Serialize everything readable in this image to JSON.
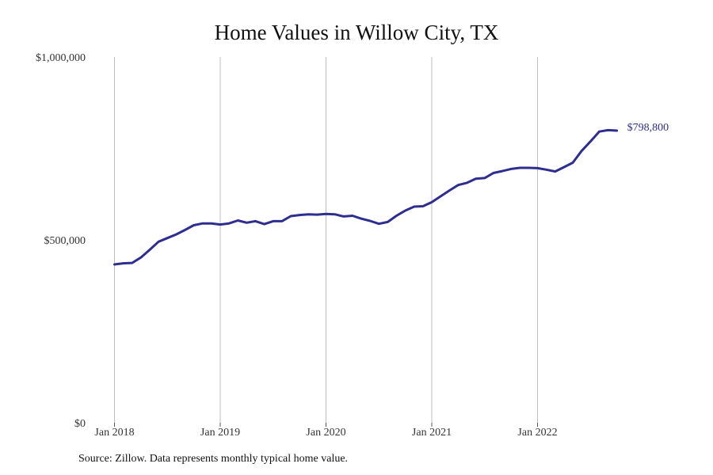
{
  "chart_data": {
    "type": "line",
    "title": "Home Values in Willow City, TX",
    "xlabel": "",
    "ylabel": "",
    "ylim": [
      0,
      1000000
    ],
    "y_ticks": [
      0,
      500000,
      1000000
    ],
    "y_tick_labels": [
      "$0",
      "$500,000",
      "$1,000,000"
    ],
    "x_ticks": [
      "2018-01",
      "2019-01",
      "2020-01",
      "2021-01",
      "2022-01"
    ],
    "x_tick_labels": [
      "Jan 2018",
      "Jan 2019",
      "Jan 2020",
      "Jan 2021",
      "Jan 2022"
    ],
    "grid": "vertical",
    "line_color": "#2e2e8f",
    "grid_color": "#bdbdbd",
    "end_label": "$798,800",
    "series": [
      {
        "x": [
          "2018-01",
          "2018-02",
          "2018-03",
          "2018-04",
          "2018-05",
          "2018-06",
          "2018-07",
          "2018-08",
          "2018-09",
          "2018-10",
          "2018-11",
          "2018-12",
          "2019-01",
          "2019-02",
          "2019-03",
          "2019-04",
          "2019-05",
          "2019-06",
          "2019-07",
          "2019-08",
          "2019-09",
          "2019-10",
          "2019-11",
          "2019-12",
          "2020-01",
          "2020-02",
          "2020-03",
          "2020-04",
          "2020-05",
          "2020-06",
          "2020-07",
          "2020-08",
          "2020-09",
          "2020-10",
          "2020-11",
          "2020-12",
          "2021-01",
          "2021-02",
          "2021-03",
          "2021-04",
          "2021-05",
          "2021-06",
          "2021-07",
          "2021-08",
          "2021-09",
          "2021-10",
          "2021-11",
          "2021-12",
          "2022-01",
          "2022-02",
          "2022-03",
          "2022-04",
          "2022-05",
          "2022-06",
          "2022-07",
          "2022-08",
          "2022-09",
          "2022-10"
        ],
        "values": [
          433000,
          436000,
          437000,
          452000,
          473000,
          495000,
          505000,
          515000,
          527000,
          540000,
          545000,
          545000,
          542000,
          545000,
          553000,
          547000,
          551000,
          543000,
          551000,
          551000,
          565000,
          568000,
          570000,
          569000,
          571000,
          570000,
          564000,
          566000,
          558000,
          552000,
          544000,
          549000,
          566000,
          580000,
          591000,
          592000,
          603000,
          619000,
          635000,
          650000,
          656000,
          667000,
          669000,
          683000,
          688000,
          694000,
          697000,
          697000,
          696000,
          692000,
          687000,
          699000,
          711000,
          743000,
          769000,
          796000,
          800000,
          798800
        ]
      }
    ]
  },
  "source_note": "Source: Zillow. Data represents monthly typical home value."
}
